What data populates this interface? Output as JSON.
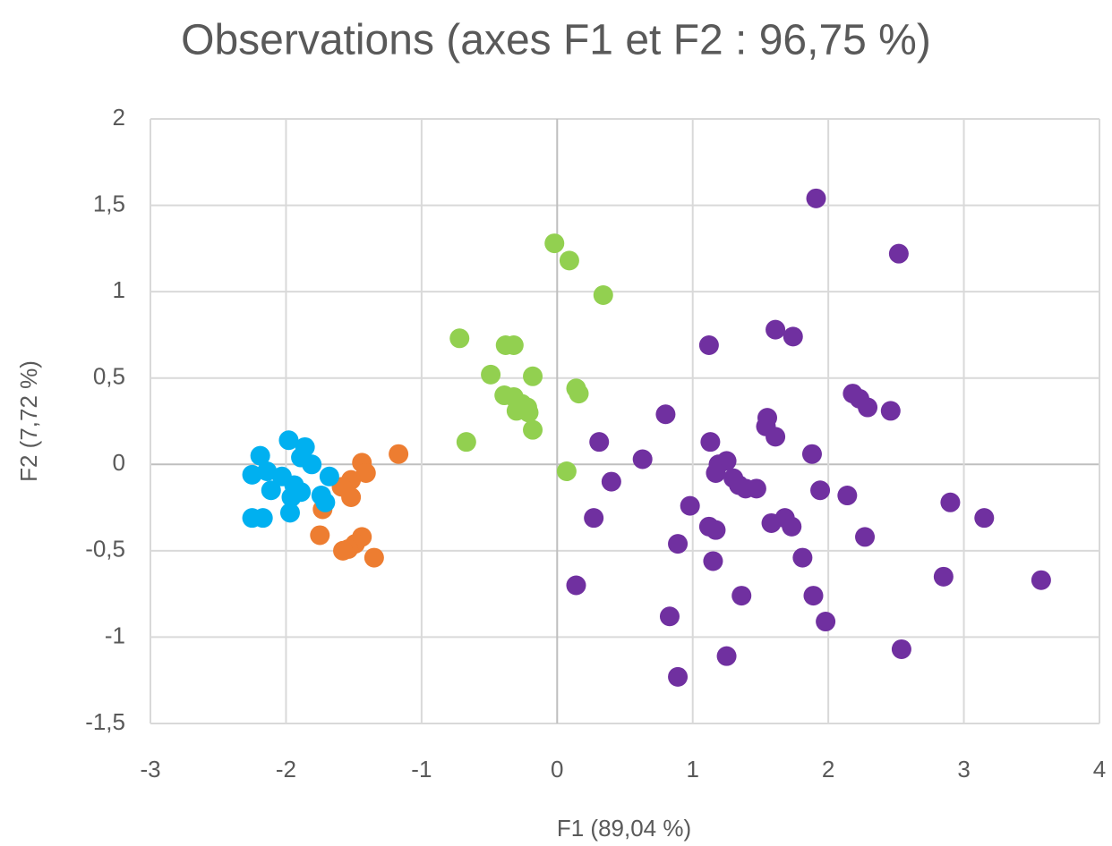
{
  "chart_data": {
    "type": "scatter",
    "title": "Observations (axes F1 et F2 : 96,75 %)",
    "x_label": "F1 (89,04 %)",
    "y_label": "F2 (7,72 %)",
    "xlim": [
      -3,
      4
    ],
    "ylim": [
      -1.5,
      2
    ],
    "xticks": [
      -3,
      -2,
      -1,
      0,
      1,
      2,
      3,
      4
    ],
    "yticks": [
      {
        "value": -1.5,
        "label": "-1,5"
      },
      {
        "value": -1,
        "label": "-1"
      },
      {
        "value": -0.5,
        "label": "-0,5"
      },
      {
        "value": 0,
        "label": "0"
      },
      {
        "value": 0.5,
        "label": "0,5"
      },
      {
        "value": 1,
        "label": "1"
      },
      {
        "value": 1.5,
        "label": "1,5"
      },
      {
        "value": 2,
        "label": "2"
      }
    ],
    "grid": true,
    "series": [
      {
        "color": "#7030a0",
        "x": [
          1.91,
          2.52,
          1.61,
          1.74,
          1.12,
          2.18,
          2.23,
          2.29,
          2.46,
          0.8,
          1.55,
          1.54,
          1.61,
          0.31,
          1.13,
          1.88,
          0.63,
          1.25,
          1.19,
          1.17,
          1.3,
          1.34,
          1.47,
          1.39,
          0.4,
          1.94,
          2.14,
          2.9,
          0.98,
          3.15,
          0.27,
          1.68,
          1.58,
          1.73,
          1.12,
          1.17,
          2.27,
          0.89,
          1.81,
          1.15,
          2.85,
          3.57,
          0.14,
          1.89,
          1.36,
          0.83,
          1.98,
          2.54,
          1.25,
          0.89
        ],
        "y": [
          1.54,
          1.22,
          0.78,
          0.74,
          0.69,
          0.41,
          0.38,
          0.33,
          0.31,
          0.29,
          0.27,
          0.22,
          0.16,
          0.13,
          0.13,
          0.06,
          0.03,
          0.02,
          0.0,
          -0.05,
          -0.08,
          -0.12,
          -0.14,
          -0.14,
          -0.1,
          -0.15,
          -0.18,
          -0.22,
          -0.24,
          -0.31,
          -0.31,
          -0.31,
          -0.34,
          -0.36,
          -0.36,
          -0.38,
          -0.42,
          -0.46,
          -0.54,
          -0.56,
          -0.65,
          -0.67,
          -0.7,
          -0.76,
          -0.76,
          -0.88,
          -0.91,
          -1.07,
          -1.11,
          -1.23
        ]
      },
      {
        "color": "#92d050",
        "x": [
          -0.02,
          0.09,
          0.34,
          -0.72,
          -0.38,
          -0.32,
          -0.49,
          -0.18,
          0.14,
          0.16,
          -0.39,
          -0.32,
          -0.26,
          -0.22,
          -0.3,
          -0.21,
          -0.18,
          -0.67,
          0.07
        ],
        "y": [
          1.28,
          1.18,
          0.98,
          0.73,
          0.69,
          0.69,
          0.52,
          0.51,
          0.44,
          0.41,
          0.4,
          0.39,
          0.35,
          0.33,
          0.31,
          0.3,
          0.2,
          0.13,
          -0.04
        ]
      },
      {
        "color": "#ed7d31",
        "x": [
          -1.17,
          -1.44,
          -1.41,
          -1.52,
          -1.59,
          -1.52,
          -1.73,
          -1.75,
          -1.44,
          -1.49,
          -1.54,
          -1.58,
          -1.35
        ],
        "y": [
          0.06,
          0.01,
          -0.05,
          -0.09,
          -0.13,
          -0.19,
          -0.26,
          -0.41,
          -0.42,
          -0.46,
          -0.49,
          -0.5,
          -0.54
        ]
      },
      {
        "color": "#00b0f0",
        "x": [
          -1.98,
          -1.86,
          -2.19,
          -1.89,
          -1.81,
          -2.14,
          -2.25,
          -1.68,
          -2.03,
          -1.94,
          -2.11,
          -1.89,
          -1.74,
          -1.96,
          -1.71,
          -1.97,
          -2.25,
          -2.17
        ],
        "y": [
          0.14,
          0.1,
          0.05,
          0.04,
          0.0,
          -0.04,
          -0.06,
          -0.07,
          -0.07,
          -0.12,
          -0.15,
          -0.16,
          -0.18,
          -0.19,
          -0.22,
          -0.28,
          -0.31,
          -0.31
        ]
      }
    ]
  }
}
